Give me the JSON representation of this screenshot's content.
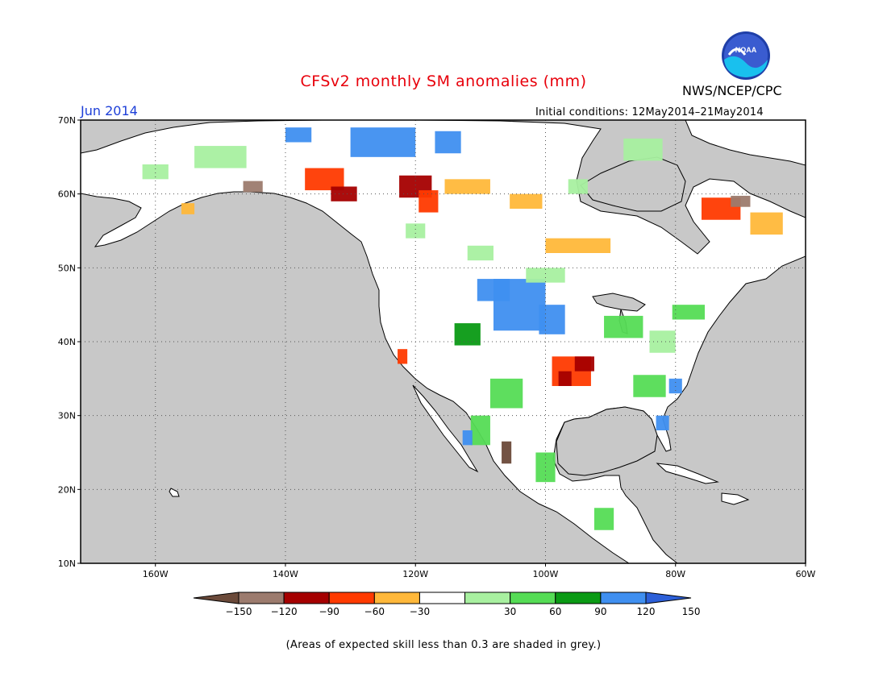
{
  "header": {
    "title": "CFSv2 monthly SM anomalies (mm)",
    "org": "NWS/NCEP/CPC",
    "period": "Jun 2014",
    "initial_conditions": "Initial conditions: 12May2014–21May2014"
  },
  "map": {
    "projection": "lat-lon",
    "lat_labels": [
      "70N",
      "60N",
      "50N",
      "40N",
      "30N",
      "20N",
      "10N"
    ],
    "lon_labels": [
      "160W",
      "140W",
      "120W",
      "100W",
      "80W",
      "60W"
    ],
    "ocean_color": "#c8c8c8",
    "land_no_signal_color": "#ffffff"
  },
  "colorbar": {
    "ticks": [
      "−150",
      "−120",
      "−90",
      "−60",
      "−30",
      "30",
      "60",
      "90",
      "120",
      "150"
    ],
    "colors": [
      "#6b4a3a",
      "#9c7b6e",
      "#a50000",
      "#ff3a00",
      "#ffb83a",
      "#ffffff",
      "#a8f0a0",
      "#55dc55",
      "#0a9a14",
      "#3f8ff0",
      "#2c5fd8"
    ]
  },
  "footnote": "(Areas of expected skill less than 0.3 are shaded in grey.)"
}
